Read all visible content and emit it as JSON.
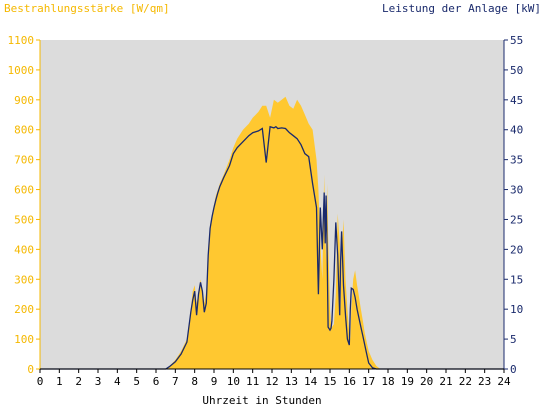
{
  "chart_data": {
    "type": "area",
    "title_left": "Bestrahlungsstärke [W/qm]",
    "title_right": "Leistung der Anlage [kW]",
    "xlabel": "Uhrzeit in Stunden",
    "xlim": [
      0,
      24
    ],
    "x_ticks": [
      "0",
      "1",
      "2",
      "3",
      "4",
      "5",
      "6",
      "7",
      "8",
      "9",
      "10",
      "11",
      "12",
      "13",
      "14",
      "15",
      "16",
      "17",
      "18",
      "19",
      "20",
      "21",
      "22",
      "23",
      "24"
    ],
    "ylim_left": [
      0,
      1100
    ],
    "ylim_right": [
      0,
      55
    ],
    "y_ticks_left": [
      "0",
      "100",
      "200",
      "300",
      "400",
      "500",
      "600",
      "700",
      "800",
      "900",
      "1000",
      "1100"
    ],
    "y_ticks_right": [
      "0",
      "5",
      "10",
      "15",
      "20",
      "25",
      "30",
      "35",
      "40",
      "45",
      "50",
      "55"
    ],
    "grid": false,
    "colors": {
      "irradiance": "#ffc830",
      "power": "#1a2a6c",
      "plot_bg": "#dcdcdc",
      "axis_left": "#f5b800",
      "axis_right": "#1a2a6c"
    },
    "series": [
      {
        "name": "Bestrahlungsstärke [W/qm]",
        "axis": "left",
        "type": "area",
        "x": [
          0,
          6.5,
          6.7,
          7.0,
          7.3,
          7.6,
          7.8,
          7.9,
          8.0,
          8.1,
          8.2,
          8.3,
          8.4,
          8.5,
          8.6,
          8.7,
          8.8,
          8.9,
          9.0,
          9.1,
          9.2,
          9.3,
          9.5,
          9.8,
          10.0,
          10.2,
          10.5,
          10.8,
          11.0,
          11.3,
          11.5,
          11.7,
          11.9,
          12.1,
          12.3,
          12.5,
          12.7,
          12.9,
          13.1,
          13.3,
          13.5,
          13.7,
          13.9,
          14.1,
          14.3,
          14.4,
          14.5,
          14.6,
          14.7,
          14.75,
          14.8,
          14.85,
          14.9,
          15.0,
          15.05,
          15.1,
          15.2,
          15.3,
          15.4,
          15.5,
          15.55,
          15.6,
          15.7,
          15.8,
          15.9,
          16.0,
          16.05,
          16.1,
          16.2,
          16.3,
          16.4,
          16.5,
          16.6,
          16.7,
          16.8,
          16.9,
          17.0,
          17.2,
          17.4,
          17.6,
          17.8,
          18.0,
          18.2,
          24
        ],
        "values": [
          0,
          0,
          10,
          30,
          60,
          100,
          200,
          260,
          280,
          220,
          250,
          300,
          260,
          220,
          260,
          390,
          480,
          520,
          550,
          580,
          600,
          620,
          650,
          700,
          740,
          770,
          800,
          820,
          840,
          860,
          880,
          880,
          840,
          900,
          890,
          900,
          910,
          880,
          870,
          900,
          880,
          850,
          820,
          800,
          700,
          600,
          420,
          300,
          650,
          480,
          350,
          620,
          450,
          200,
          150,
          140,
          150,
          250,
          520,
          420,
          200,
          380,
          500,
          300,
          200,
          120,
          100,
          200,
          300,
          330,
          280,
          240,
          200,
          160,
          120,
          90,
          60,
          30,
          10,
          0,
          0,
          0,
          0,
          0
        ]
      },
      {
        "name": "Leistung der Anlage [kW]",
        "axis": "right",
        "type": "line",
        "x": [
          0,
          6.5,
          6.7,
          7.0,
          7.3,
          7.6,
          7.8,
          7.9,
          8.0,
          8.1,
          8.2,
          8.3,
          8.4,
          8.5,
          8.6,
          8.7,
          8.8,
          8.9,
          9.0,
          9.1,
          9.2,
          9.3,
          9.5,
          9.8,
          10.0,
          10.2,
          10.5,
          10.8,
          11.0,
          11.3,
          11.5,
          11.7,
          11.9,
          12.1,
          12.2,
          12.3,
          12.5,
          12.7,
          12.9,
          13.1,
          13.3,
          13.5,
          13.7,
          13.9,
          14.1,
          14.3,
          14.4,
          14.5,
          14.6,
          14.7,
          14.75,
          14.8,
          14.85,
          14.9,
          15.0,
          15.05,
          15.1,
          15.2,
          15.3,
          15.4,
          15.5,
          15.55,
          15.6,
          15.7,
          15.8,
          15.9,
          16.0,
          16.05,
          16.1,
          16.2,
          16.3,
          16.4,
          16.5,
          16.6,
          16.7,
          16.8,
          16.9,
          17.0,
          17.2,
          17.4,
          17.6,
          17.8,
          18.0,
          18.2,
          24
        ],
        "values": [
          0,
          0,
          0.4,
          1.2,
          2.5,
          4.5,
          9.5,
          11.5,
          13,
          9,
          12.5,
          14.5,
          13,
          9.5,
          11,
          19,
          23.5,
          25.5,
          27,
          28.3,
          29.5,
          30.5,
          32,
          34,
          36,
          37,
          38,
          39,
          39.5,
          39.8,
          40.2,
          34.5,
          40.5,
          40.3,
          40.5,
          40.2,
          40.3,
          40.2,
          39.5,
          39,
          38.5,
          37.5,
          36,
          35.5,
          31,
          27,
          12.5,
          27,
          20,
          29.5,
          21,
          29,
          20,
          7,
          6.5,
          6.8,
          8,
          15,
          24.5,
          19,
          9,
          18,
          23,
          14,
          9,
          5,
          4,
          10,
          13.5,
          13.3,
          12,
          10,
          8.5,
          7,
          5.5,
          4,
          2.5,
          1,
          0.2,
          0,
          0,
          0,
          0,
          0,
          0
        ]
      }
    ]
  }
}
